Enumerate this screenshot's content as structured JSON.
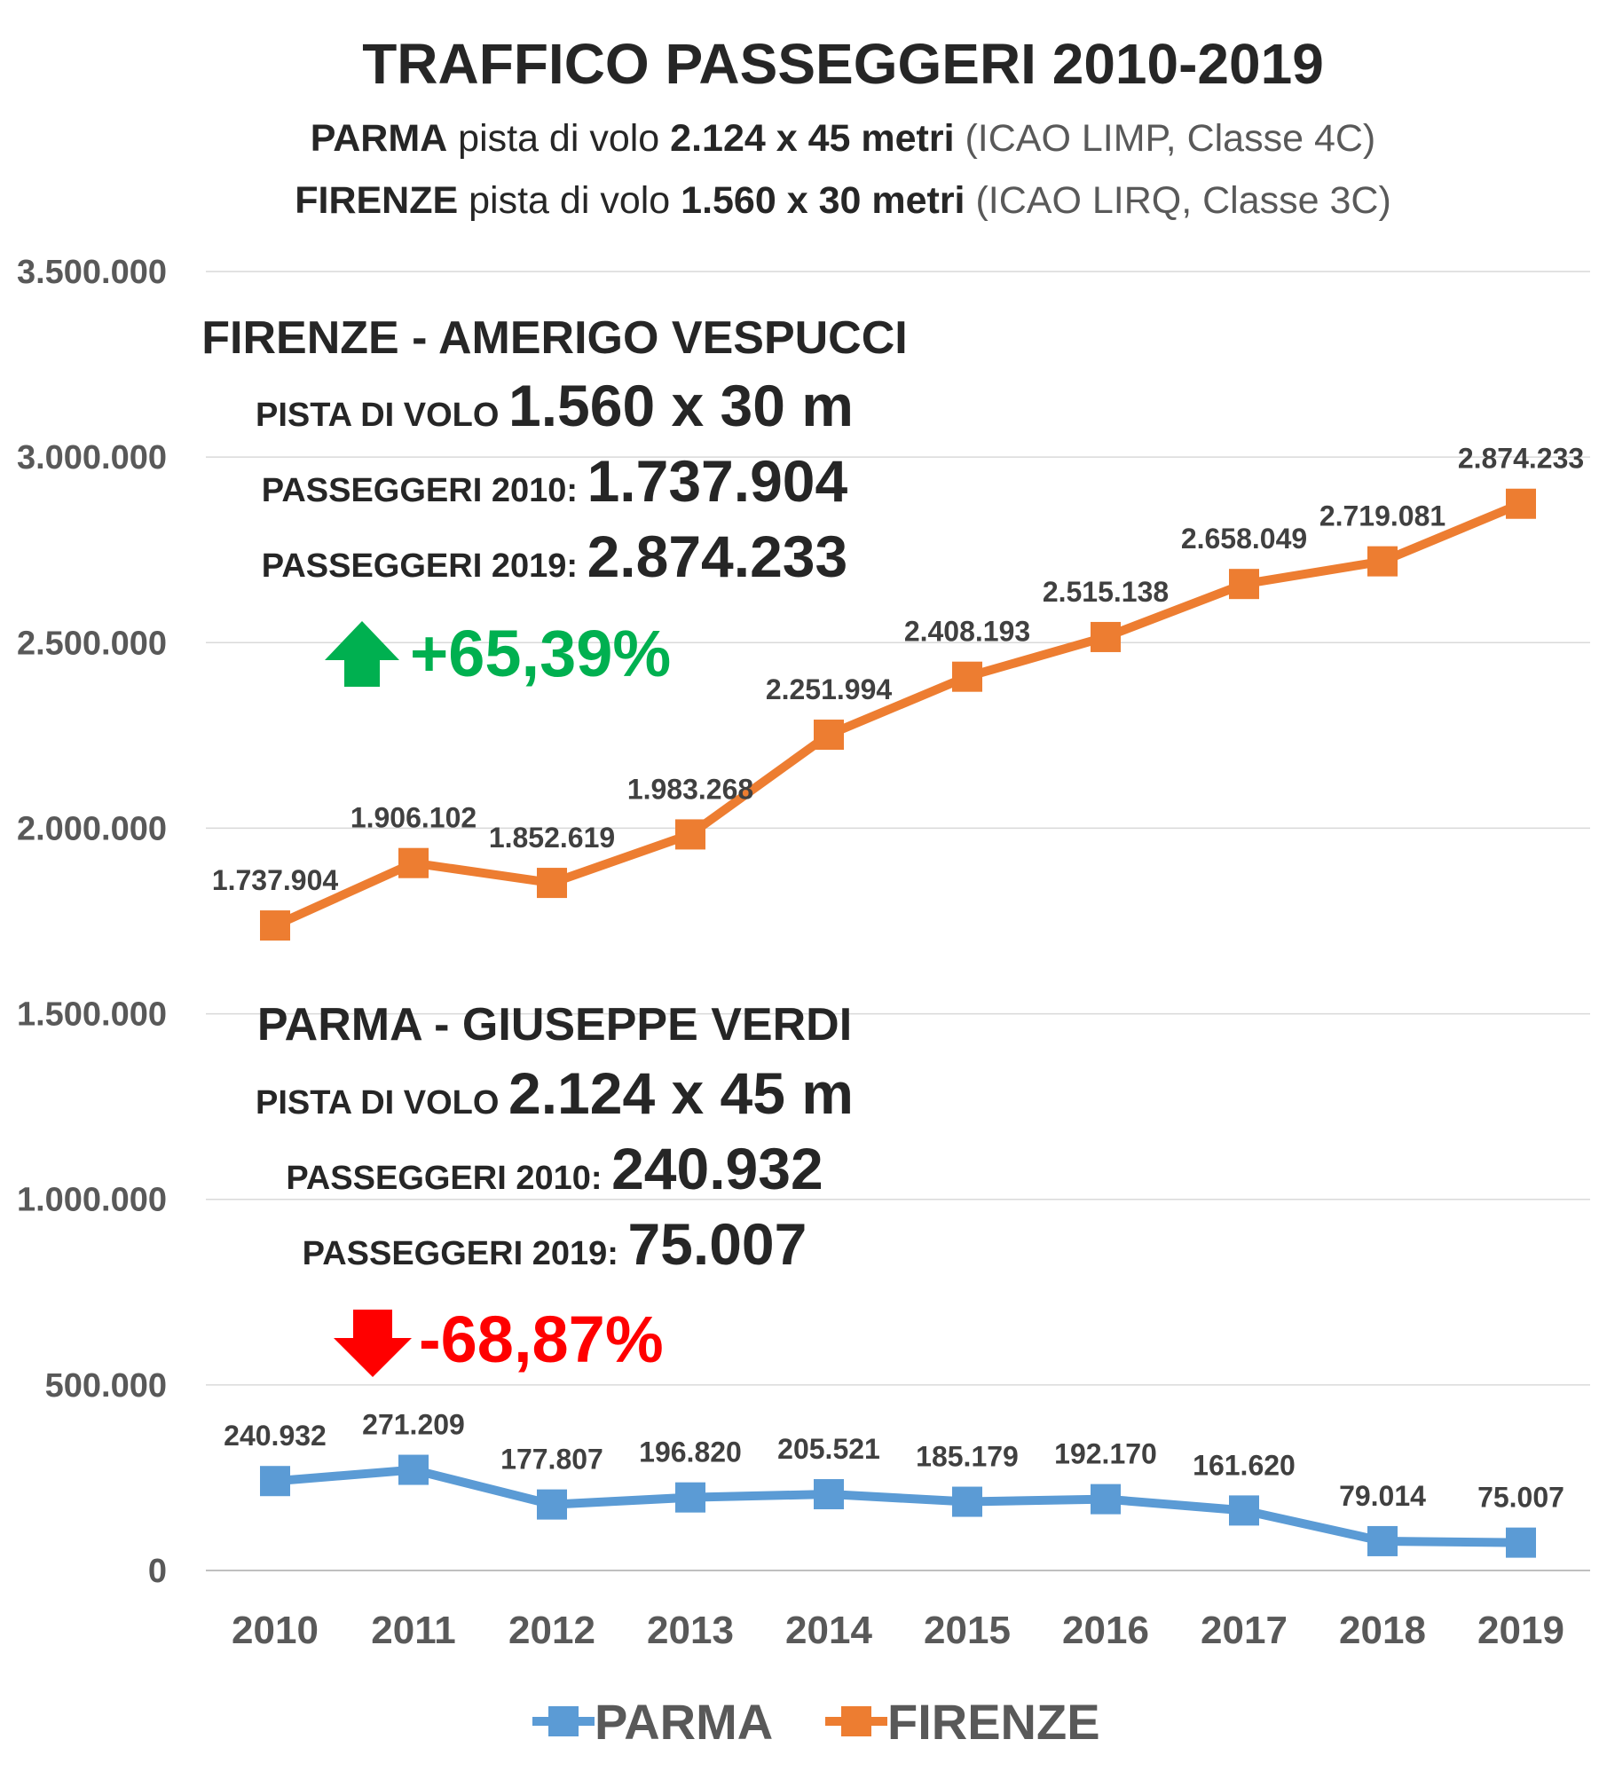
{
  "chart_data": {
    "type": "line",
    "title": "TRAFFICO PASSEGGERI 2010-2019",
    "subtitle_lines": [
      {
        "bold1": "PARMA",
        "normal1": " pista di volo ",
        "bold2": "2.124 x 45 metri",
        "gray": " (ICAO LIMP, Classe 4C)"
      },
      {
        "bold1": "FIRENZE",
        "normal1": " pista di volo ",
        "bold2": "1.560 x 30 metri",
        "gray": " (ICAO LIRQ, Classe 3C)"
      }
    ],
    "categories": [
      "2010",
      "2011",
      "2012",
      "2013",
      "2014",
      "2015",
      "2016",
      "2017",
      "2018",
      "2019"
    ],
    "ylim": [
      0,
      3500000
    ],
    "y_ticks": [
      0,
      500000,
      1000000,
      1500000,
      2000000,
      2500000,
      3000000,
      3500000
    ],
    "y_tick_labels": [
      "0",
      "500.000",
      "1.000.000",
      "1.500.000",
      "2.000.000",
      "2.500.000",
      "3.000.000",
      "3.500.000"
    ],
    "grid": true,
    "legend_position": "bottom",
    "series": [
      {
        "name": "PARMA",
        "color": "#5B9BD5",
        "values": [
          240932,
          271209,
          177807,
          196820,
          205521,
          185179,
          192170,
          161620,
          79014,
          75007
        ],
        "labels": [
          "240.932",
          "271.209",
          "177.807",
          "196.820",
          "205.521",
          "185.179",
          "192.170",
          "161.620",
          "79.014",
          "75.007"
        ]
      },
      {
        "name": "FIRENZE",
        "color": "#ED7D31",
        "values": [
          1737904,
          1906102,
          1852619,
          1983268,
          2251994,
          2408193,
          2515138,
          2658049,
          2719081,
          2874233
        ],
        "labels": [
          "1.737.904",
          "1.906.102",
          "1.852.619",
          "1.983.268",
          "2.251.994",
          "2.408.193",
          "2.515.138",
          "2.658.049",
          "2.719.081",
          "2.874.233"
        ]
      }
    ],
    "annotations": {
      "firenze": {
        "heading": "FIRENZE - AMERIGO VESPUCCI",
        "runway_label": "PISTA DI VOLO ",
        "runway_value": "1.560 x 30 m",
        "pass2010_label": "PASSEGGERI 2010: ",
        "pass2010_value": "1.737.904",
        "pass2019_label": "PASSEGGERI 2019: ",
        "pass2019_value": "2.874.233",
        "change": "+65,39%",
        "change_color": "#00B050",
        "arrow": "up-arrow-icon"
      },
      "parma": {
        "heading": "PARMA - GIUSEPPE VERDI",
        "runway_label": "PISTA DI VOLO ",
        "runway_value": "2.124 x 45 m",
        "pass2010_label": "PASSEGGERI 2010: ",
        "pass2010_value": "240.932",
        "pass2019_label": "PASSEGGERI 2019: ",
        "pass2019_value": "75.007",
        "change": "-68,87%",
        "change_color": "#FF0000",
        "arrow": "down-arrow-icon"
      }
    }
  }
}
